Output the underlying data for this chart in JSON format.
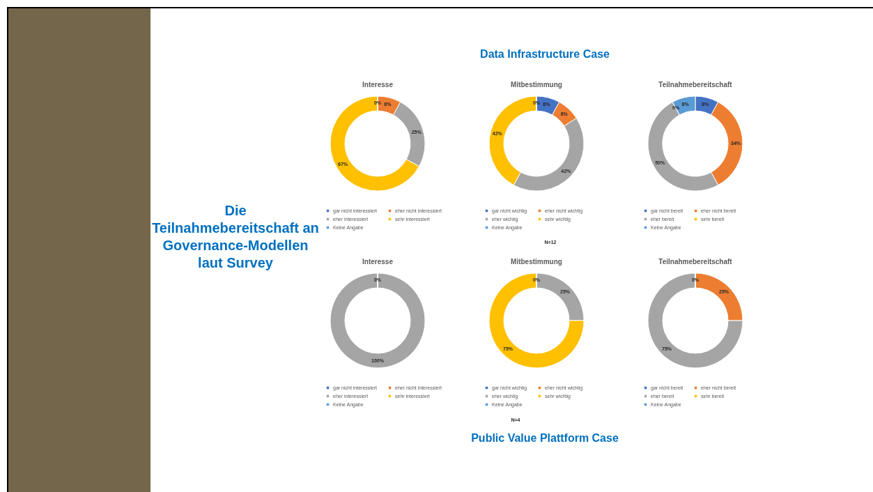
{
  "chart_data": [
    {
      "type": "other",
      "title": "Die Teilnahmebereitschaft an Governance-Modellen laut Survey",
      "annotations": [
        "Data Infrastructure Case",
        "N=12",
        "N=4",
        "Public Value Plattform Case"
      ]
    },
    {
      "type": "donut",
      "title": "Interesse",
      "categories": [
        "gar nicht interessiert",
        "eher nicht interessiert",
        "eher interessiert",
        "sehr interessiert",
        "Keine Angabe"
      ],
      "values": [
        0,
        8,
        25,
        67,
        0
      ],
      "colors": [
        "#4472c4",
        "#ed7d31",
        "#a5a5a5",
        "#ffc000",
        "#5b9bd5"
      ],
      "value_labels": [
        null,
        "8%",
        "25%",
        "67%",
        "0%"
      ],
      "legend": "bottom"
    },
    {
      "type": "donut",
      "title": "Mitbestimmung",
      "categories": [
        "gar nicht wichtig",
        "eher nicht wichtig",
        "eher wichtig",
        "sehr wichtig",
        "Keine Angabe"
      ],
      "values": [
        8,
        8,
        42,
        42,
        0
      ],
      "colors": [
        "#4472c4",
        "#ed7d31",
        "#a5a5a5",
        "#ffc000",
        "#5b9bd5"
      ],
      "value_labels": [
        "8%",
        "8%",
        "42%",
        "42%",
        "0%"
      ],
      "legend": "bottom"
    },
    {
      "type": "donut",
      "title": "Teilnahmebereitschaft",
      "categories": [
        "gar nicht bereit",
        "eher nicht bereit",
        "eher bereit",
        "sehr bereit",
        "Keine Angabe"
      ],
      "values": [
        8,
        34,
        50,
        0,
        8
      ],
      "colors": [
        "#4472c4",
        "#ed7d31",
        "#a5a5a5",
        "#ffc000",
        "#5b9bd5"
      ],
      "value_labels": [
        "8%",
        "34%",
        "50%",
        "0%",
        "8%"
      ],
      "legend": "bottom"
    },
    {
      "type": "donut",
      "title": "Interesse",
      "categories": [
        "gar nicht interessiert",
        "eher nicht interessiert",
        "eher interessiert",
        "sehr interessiert",
        "Keine Angabe"
      ],
      "values": [
        0,
        0,
        100,
        0,
        0
      ],
      "colors": [
        "#4472c4",
        "#ed7d31",
        "#a5a5a5",
        "#ffc000",
        "#5b9bd5"
      ],
      "value_labels": [
        null,
        null,
        "100%",
        null,
        "0%"
      ],
      "legend": "bottom"
    },
    {
      "type": "donut",
      "title": "Mitbestimmung",
      "categories": [
        "gar nicht wichtig",
        "eher nicht wichtig",
        "eher wichtig",
        "sehr wichtig",
        "Keine Angabe"
      ],
      "values": [
        0,
        0,
        25,
        75,
        0
      ],
      "colors": [
        "#4472c4",
        "#ed7d31",
        "#a5a5a5",
        "#ffc000",
        "#5b9bd5"
      ],
      "value_labels": [
        null,
        null,
        "25%",
        "75%",
        "0%"
      ],
      "legend": "bottom"
    },
    {
      "type": "donut",
      "title": "Teilnahmebereitschaft",
      "categories": [
        "gar nicht bereit",
        "eher nicht bereit",
        "eher bereit",
        "sehr bereit",
        "Keine Angabe"
      ],
      "values": [
        0,
        25,
        75,
        0,
        0
      ],
      "colors": [
        "#4472c4",
        "#ed7d31",
        "#a5a5a5",
        "#ffc000",
        "#5b9bd5"
      ],
      "value_labels": [
        null,
        "25%",
        "75%",
        null,
        "0%"
      ],
      "legend": "bottom"
    }
  ]
}
